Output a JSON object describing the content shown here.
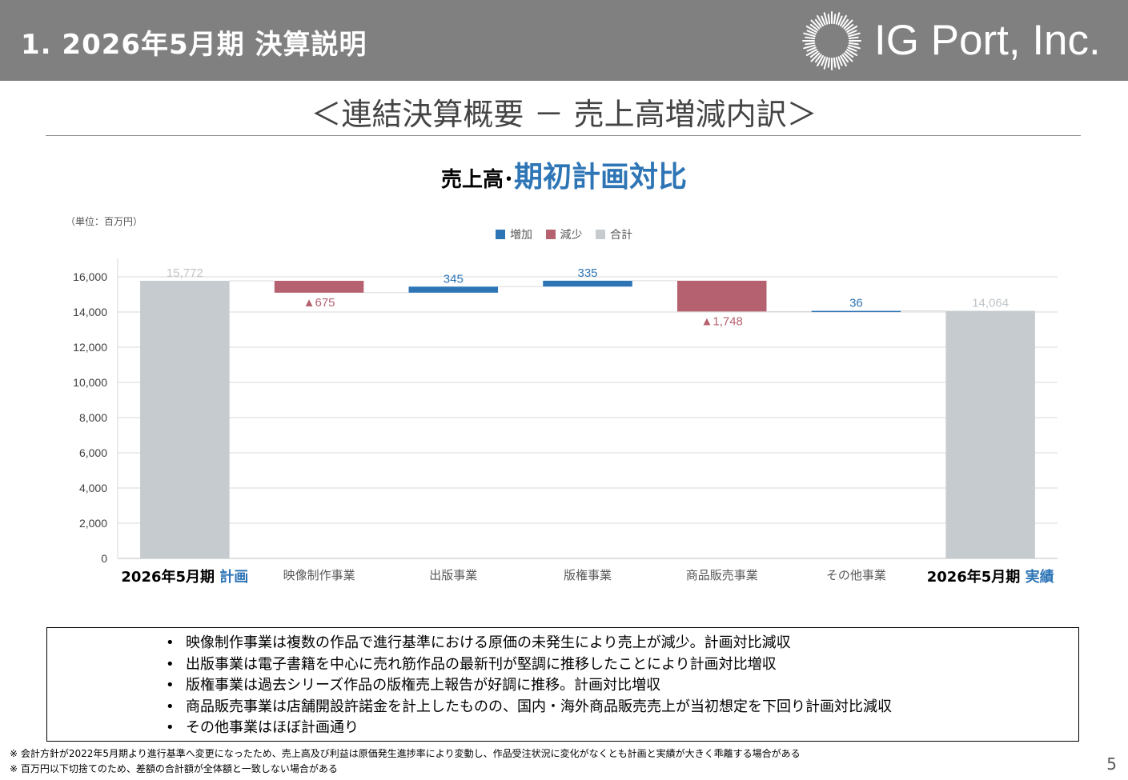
{
  "header": {
    "title": "1. 2026年5月期 決算説明",
    "company": "IG Port, Inc."
  },
  "section_title": "＜連結決算概要 － 売上高増減内訳＞",
  "chart_heading": {
    "prefix": "売上高･",
    "emphasis": "期初計画対比"
  },
  "colors": {
    "increase": "#2e75b6",
    "decrease": "#b5616f",
    "total": "#c5cbce",
    "emphasis": "#2e75b6"
  },
  "chart_data": {
    "type": "waterfall",
    "unit_label": "（単位：百万円）",
    "legend": [
      "増加",
      "減少",
      "合計"
    ],
    "yticks": [
      "0",
      "2,000",
      "4,000",
      "6,000",
      "8,000",
      "10,000",
      "12,000",
      "14,000",
      "16,000"
    ],
    "ylim": [
      0,
      17000
    ],
    "categories": [
      {
        "label": "2026年5月期",
        "label_emphasis": "計画",
        "kind": "total",
        "value": 15772,
        "value_label": "15,772"
      },
      {
        "label": "映像制作事業",
        "kind": "decrease",
        "value": 675,
        "value_label": "▲675"
      },
      {
        "label": "出版事業",
        "kind": "increase",
        "value": 345,
        "value_label": "345"
      },
      {
        "label": "版権事業",
        "kind": "increase",
        "value": 335,
        "value_label": "335"
      },
      {
        "label": "商品販売事業",
        "kind": "decrease",
        "value": 1748,
        "value_label": "▲1,748"
      },
      {
        "label": "その他事業",
        "kind": "increase",
        "value": 36,
        "value_label": "36"
      },
      {
        "label": "2026年5月期",
        "label_emphasis": "実績",
        "kind": "total",
        "value": 14064,
        "value_label": "14,064"
      }
    ]
  },
  "notes": [
    "映像制作事業は複数の作品で進行基準における原価の未発生により売上が減少。計画対比減収",
    "出版事業は電子書籍を中心に売れ筋作品の最新刊が堅調に推移したことにより計画対比増収",
    "版権事業は過去シリーズ作品の版権売上報告が好調に推移。計画対比増収",
    "商品販売事業は店舗開設許諾金を計上したものの、国内・海外商品販売売上が当初想定を下回り計画対比減収",
    "その他事業はほぼ計画通り"
  ],
  "footnotes": [
    "※  会計方針が2022年5月期より進行基準へ変更になったため、売上高及び利益は原価発生進捗率により変動し、作品受注状況に変化がなくとも計画と実績が大きく乖離する場合がある",
    "※  百万円以下切捨てのため、差額の合計額が全体額と一致しない場合がある"
  ],
  "page_number": "5"
}
